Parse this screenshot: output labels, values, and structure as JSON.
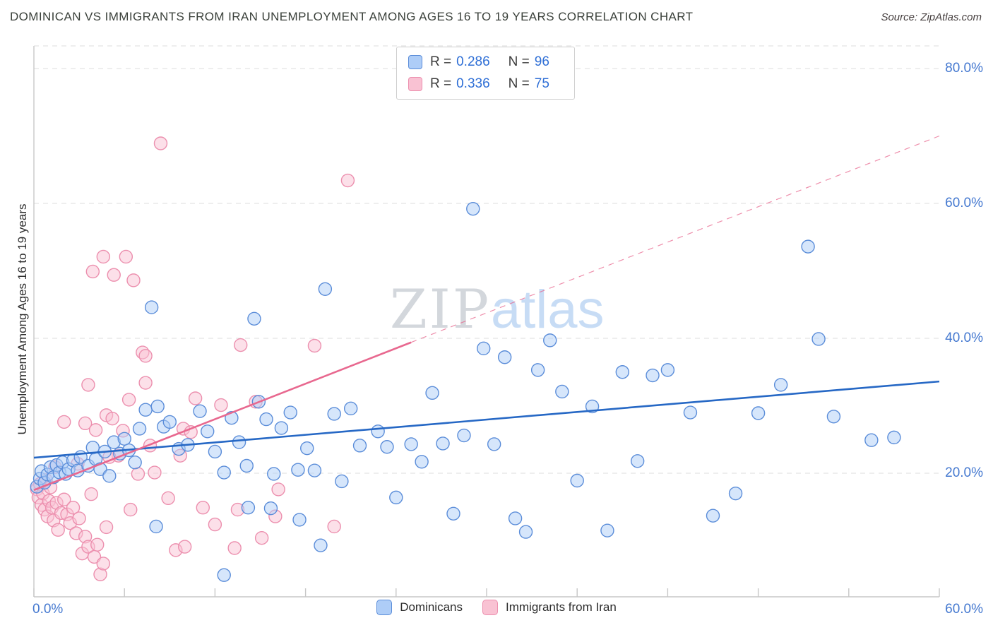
{
  "header": {
    "title": "DOMINICAN VS IMMIGRANTS FROM IRAN UNEMPLOYMENT AMONG AGES 16 TO 19 YEARS CORRELATION CHART",
    "source": "Source: ZipAtlas.com"
  },
  "legend": {
    "rows": [
      {
        "r_label": "R =",
        "r_value": "0.286",
        "n_label": "N =",
        "n_value": "96"
      },
      {
        "r_label": "R =",
        "r_value": "0.336",
        "n_label": "N =",
        "n_value": "75"
      }
    ]
  },
  "axes": {
    "y_label": "Unemployment Among Ages 16 to 19 years",
    "y_ticks": [
      "80.0%",
      "60.0%",
      "40.0%",
      "20.0%"
    ],
    "x_min_label": "0.0%",
    "x_max_label": "60.0%"
  },
  "watermark": {
    "zip": "ZIP",
    "atlas": "atlas"
  },
  "bottom_legend": [
    {
      "label": "Dominicans"
    },
    {
      "label": "Immigrants from Iran"
    }
  ],
  "colors": {
    "accent_blue_text": "#3f76d2",
    "value_blue": "#2f6fd6",
    "grid": "#dcdcdc",
    "axis": "#c7c7c7"
  },
  "chart_data": {
    "type": "scatter",
    "title": "Dominican vs Immigrants from Iran Unemployment Among Ages 16 to 19 years Correlation Chart",
    "xlabel": "",
    "ylabel": "Unemployment Among Ages 16 to 19 years",
    "xlim": [
      0,
      60
    ],
    "ylim": [
      0,
      83
    ],
    "x_unit": "%",
    "y_unit": "%",
    "gridlines_y": [
      20,
      40,
      60,
      80
    ],
    "x_tick_step": 6,
    "legend_position": "bottom",
    "series": [
      {
        "id": "dominicans",
        "name": "Dominicans",
        "R": 0.286,
        "N": 96,
        "fill": "#aecdf7",
        "color": "#5b8dd9",
        "line_color": "#2668c5",
        "trend": {
          "x": [
            0,
            60
          ],
          "y": [
            22.3,
            33.6
          ],
          "style": "solid"
        },
        "points": [
          [
            0.2,
            18.0
          ],
          [
            0.4,
            19.2
          ],
          [
            0.5,
            20.3
          ],
          [
            0.7,
            18.6
          ],
          [
            0.9,
            19.8
          ],
          [
            1.1,
            20.9
          ],
          [
            1.3,
            19.4
          ],
          [
            1.5,
            21.2
          ],
          [
            1.7,
            20.1
          ],
          [
            1.9,
            21.6
          ],
          [
            2.1,
            19.9
          ],
          [
            2.3,
            20.6
          ],
          [
            2.6,
            21.9
          ],
          [
            2.9,
            20.4
          ],
          [
            3.1,
            22.4
          ],
          [
            3.6,
            21.1
          ],
          [
            3.9,
            23.8
          ],
          [
            4.1,
            22.1
          ],
          [
            4.4,
            20.6
          ],
          [
            4.7,
            23.2
          ],
          [
            5.0,
            19.6
          ],
          [
            5.3,
            24.6
          ],
          [
            5.7,
            22.9
          ],
          [
            6.0,
            25.1
          ],
          [
            6.3,
            23.4
          ],
          [
            6.7,
            21.6
          ],
          [
            7.0,
            26.6
          ],
          [
            7.4,
            29.4
          ],
          [
            7.8,
            44.6
          ],
          [
            8.2,
            29.9
          ],
          [
            8.6,
            26.9
          ],
          [
            9.0,
            27.6
          ],
          [
            9.6,
            23.6
          ],
          [
            10.2,
            24.2
          ],
          [
            11.0,
            29.2
          ],
          [
            11.5,
            26.2
          ],
          [
            12.0,
            23.2
          ],
          [
            12.6,
            20.1
          ],
          [
            13.1,
            28.2
          ],
          [
            13.6,
            24.6
          ],
          [
            14.1,
            21.1
          ],
          [
            14.6,
            42.9
          ],
          [
            14.9,
            30.6
          ],
          [
            15.4,
            28.0
          ],
          [
            12.6,
            4.9
          ],
          [
            19.0,
            9.3
          ],
          [
            15.7,
            14.8
          ],
          [
            14.2,
            14.9
          ],
          [
            17.6,
            13.1
          ],
          [
            8.1,
            12.1
          ],
          [
            15.9,
            19.9
          ],
          [
            16.4,
            26.7
          ],
          [
            17.0,
            29.0
          ],
          [
            17.5,
            20.5
          ],
          [
            18.1,
            23.7
          ],
          [
            18.6,
            20.4
          ],
          [
            19.3,
            47.3
          ],
          [
            19.9,
            28.8
          ],
          [
            20.4,
            18.8
          ],
          [
            21.0,
            29.6
          ],
          [
            21.6,
            24.1
          ],
          [
            22.8,
            26.2
          ],
          [
            23.4,
            23.9
          ],
          [
            24.0,
            16.4
          ],
          [
            25.0,
            24.3
          ],
          [
            25.7,
            21.7
          ],
          [
            26.4,
            31.9
          ],
          [
            27.1,
            24.4
          ],
          [
            27.8,
            14.0
          ],
          [
            28.5,
            25.6
          ],
          [
            29.1,
            59.2
          ],
          [
            29.8,
            38.5
          ],
          [
            30.5,
            24.3
          ],
          [
            31.2,
            37.2
          ],
          [
            31.9,
            13.3
          ],
          [
            32.6,
            11.3
          ],
          [
            33.4,
            35.3
          ],
          [
            34.2,
            39.7
          ],
          [
            35.0,
            32.1
          ],
          [
            36.0,
            18.9
          ],
          [
            37.0,
            29.9
          ],
          [
            38.0,
            11.5
          ],
          [
            39.0,
            35.0
          ],
          [
            40.0,
            21.8
          ],
          [
            41.0,
            34.5
          ],
          [
            42.0,
            35.3
          ],
          [
            43.5,
            29.0
          ],
          [
            45.0,
            13.7
          ],
          [
            46.5,
            17.0
          ],
          [
            48.0,
            28.9
          ],
          [
            49.5,
            33.1
          ],
          [
            51.3,
            53.6
          ],
          [
            52.0,
            39.9
          ],
          [
            53.0,
            28.4
          ],
          [
            55.5,
            24.9
          ],
          [
            57.0,
            25.3
          ]
        ]
      },
      {
        "id": "iran",
        "name": "Immigrants from Iran",
        "R": 0.336,
        "N": 75,
        "fill": "#f9c2d3",
        "color": "#ec8fae",
        "line_color": "#e8688f",
        "trend": {
          "x": [
            0,
            25
          ],
          "y": [
            17.5,
            39.4
          ],
          "style": "solid",
          "extension": {
            "x": [
              25,
              60
            ],
            "y": [
              39.4,
              70.0
            ],
            "style": "dashed"
          }
        },
        "points": [
          [
            0.2,
            17.6
          ],
          [
            0.3,
            16.4
          ],
          [
            0.4,
            18.4
          ],
          [
            0.5,
            15.3
          ],
          [
            0.6,
            17.0
          ],
          [
            0.7,
            14.6
          ],
          [
            0.8,
            19.0
          ],
          [
            0.9,
            13.6
          ],
          [
            1.0,
            15.9
          ],
          [
            1.1,
            17.9
          ],
          [
            1.2,
            14.9
          ],
          [
            1.3,
            13.0
          ],
          [
            1.5,
            15.6
          ],
          [
            1.6,
            11.6
          ],
          [
            1.8,
            14.1
          ],
          [
            2.0,
            16.1
          ],
          [
            2.2,
            13.9
          ],
          [
            2.4,
            12.6
          ],
          [
            2.6,
            14.9
          ],
          [
            2.8,
            11.1
          ],
          [
            3.0,
            13.3
          ],
          [
            3.2,
            8.1
          ],
          [
            3.4,
            10.6
          ],
          [
            3.6,
            9.1
          ],
          [
            3.8,
            16.9
          ],
          [
            4.0,
            7.6
          ],
          [
            4.2,
            9.4
          ],
          [
            4.4,
            5.0
          ],
          [
            4.6,
            6.6
          ],
          [
            4.8,
            12.0
          ],
          [
            2.0,
            27.6
          ],
          [
            3.4,
            27.4
          ],
          [
            3.6,
            33.1
          ],
          [
            4.8,
            28.6
          ],
          [
            5.2,
            28.1
          ],
          [
            5.6,
            22.6
          ],
          [
            6.4,
            14.6
          ],
          [
            6.9,
            19.9
          ],
          [
            7.4,
            33.4
          ],
          [
            5.0,
            22.4
          ],
          [
            8.0,
            20.1
          ],
          [
            9.9,
            26.6
          ],
          [
            3.9,
            49.9
          ],
          [
            4.6,
            52.1
          ],
          [
            5.3,
            49.4
          ],
          [
            6.1,
            52.1
          ],
          [
            6.6,
            48.6
          ],
          [
            8.4,
            68.9
          ],
          [
            20.8,
            63.4
          ],
          [
            7.2,
            37.9
          ],
          [
            7.4,
            37.4
          ],
          [
            10.7,
            31.1
          ],
          [
            9.4,
            8.6
          ],
          [
            10.0,
            9.1
          ],
          [
            13.3,
            8.9
          ],
          [
            15.1,
            10.4
          ],
          [
            12.0,
            12.4
          ],
          [
            19.9,
            12.1
          ],
          [
            11.2,
            14.9
          ],
          [
            13.5,
            14.6
          ],
          [
            16.0,
            13.6
          ],
          [
            14.7,
            30.6
          ],
          [
            13.7,
            39.0
          ],
          [
            18.6,
            38.9
          ],
          [
            16.2,
            17.6
          ],
          [
            12.4,
            30.1
          ],
          [
            9.7,
            22.6
          ],
          [
            5.9,
            26.3
          ],
          [
            7.7,
            24.1
          ],
          [
            8.9,
            16.3
          ],
          [
            10.4,
            26.1
          ],
          [
            2.9,
            21.4
          ],
          [
            1.4,
            20.9
          ],
          [
            4.1,
            26.4
          ],
          [
            6.3,
            30.9
          ]
        ]
      }
    ]
  }
}
